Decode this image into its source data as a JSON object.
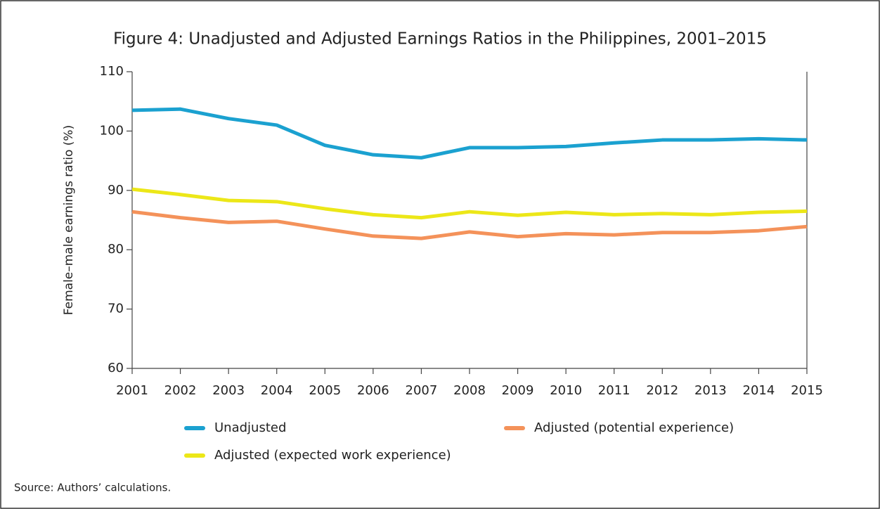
{
  "chart_data": {
    "type": "line",
    "title": "Figure 4: Unadjusted and Adjusted Earnings Ratios in the Philippines, 2001–2015",
    "y_label": "Female–male earnings ratio (%)",
    "source": "Source: Authors’ calculations.",
    "x": [
      2001,
      2002,
      2003,
      2004,
      2005,
      2006,
      2007,
      2008,
      2009,
      2010,
      2011,
      2012,
      2013,
      2014,
      2015
    ],
    "xlim": [
      2001,
      2015
    ],
    "xticks": [
      2001,
      2002,
      2003,
      2004,
      2005,
      2006,
      2007,
      2008,
      2009,
      2010,
      2011,
      2012,
      2013,
      2014,
      2015
    ],
    "ylim": [
      60,
      110
    ],
    "yticks": [
      60,
      70,
      80,
      90,
      100,
      110
    ],
    "grid": false,
    "series": [
      {
        "name": "Unadjusted",
        "color": "#1ba1d0",
        "values": [
          103.5,
          103.7,
          102.1,
          101.0,
          97.6,
          96.0,
          95.5,
          97.2,
          97.2,
          97.4,
          98.0,
          98.5,
          98.5,
          98.7,
          98.5
        ]
      },
      {
        "name": "Adjusted (potential experience)",
        "color": "#f4925a",
        "values": [
          86.4,
          85.4,
          84.6,
          84.8,
          83.5,
          82.3,
          81.9,
          83.0,
          82.2,
          82.7,
          82.5,
          82.9,
          82.9,
          83.2,
          83.9
        ]
      },
      {
        "name": "Adjusted (expected work experience)",
        "color": "#ece718",
        "values": [
          90.2,
          89.3,
          88.3,
          88.1,
          86.9,
          85.9,
          85.4,
          86.4,
          85.8,
          86.3,
          85.9,
          86.1,
          85.9,
          86.3,
          86.5
        ]
      }
    ]
  }
}
